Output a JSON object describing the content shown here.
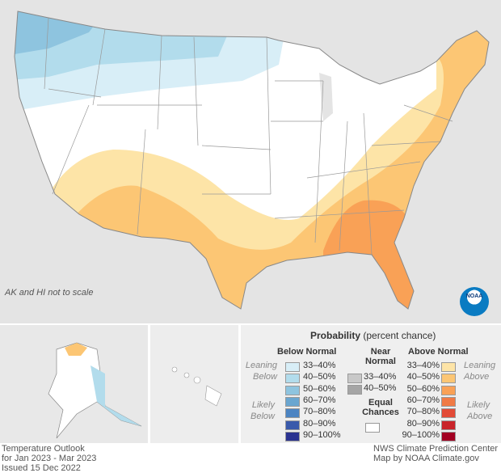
{
  "note": "AK and HI not to scale",
  "legend": {
    "title_bold": "Probability",
    "title_rest": "(percent chance)",
    "below_header": "Below Normal",
    "near_header_1": "Near",
    "near_header_2": "Normal",
    "above_header": "Above Normal",
    "leaning_below_1": "Leaning",
    "leaning_below_2": "Below",
    "likely_below_1": "Likely",
    "likely_below_2": "Below",
    "leaning_above_1": "Leaning",
    "leaning_above_2": "Above",
    "likely_above_1": "Likely",
    "likely_above_2": "Above",
    "equal_1": "Equal",
    "equal_2": "Chances",
    "below": [
      {
        "label": "33–40%",
        "color": "#d8eef7"
      },
      {
        "label": "40–50%",
        "color": "#b2dcec"
      },
      {
        "label": "50–60%",
        "color": "#8ec4df"
      },
      {
        "label": "60–70%",
        "color": "#6aa6d0"
      },
      {
        "label": "70–80%",
        "color": "#4c84c2"
      },
      {
        "label": "80–90%",
        "color": "#3a5aab"
      },
      {
        "label": "90–100%",
        "color": "#2b3390"
      }
    ],
    "near": [
      {
        "label": "33–40%",
        "color": "#c8c8c8"
      },
      {
        "label": "40–50%",
        "color": "#a5a5a5"
      }
    ],
    "above": [
      {
        "label": "33–40%",
        "color": "#fde4a7"
      },
      {
        "label": "40–50%",
        "color": "#fcc674"
      },
      {
        "label": "50–60%",
        "color": "#f9a156"
      },
      {
        "label": "60–70%",
        "color": "#f07a45"
      },
      {
        "label": "70–80%",
        "color": "#e24a36"
      },
      {
        "label": "80–90%",
        "color": "#c9242a"
      },
      {
        "label": "90–100%",
        "color": "#a20022"
      }
    ]
  },
  "footer": {
    "left": [
      "Temperature Outlook",
      "for Jan 2023 - Mar 2023",
      "Issued 15 Dec 2022"
    ],
    "right": [
      "NWS Climate Prediction Center",
      "Map by NOAA Climate.gov"
    ]
  },
  "logo": "NOAA"
}
